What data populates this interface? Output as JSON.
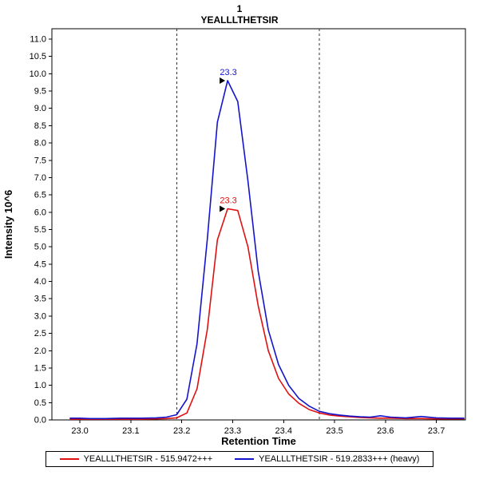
{
  "title": "1",
  "subtitle": "YEALLLTHETSIR",
  "chart_data": {
    "type": "line",
    "title": "1",
    "subtitle": "YEALLLTHETSIR",
    "xlabel": "Retention Time",
    "ylabel": "Intensity 10^6",
    "xlim": [
      22.945,
      23.757
    ],
    "ylim": [
      0,
      11.3
    ],
    "x_ticks": [
      23.0,
      23.1,
      23.2,
      23.3,
      23.4,
      23.5,
      23.6,
      23.7
    ],
    "y_tick_step": 0.5,
    "y_tick_max": 11.0,
    "grid": false,
    "legend_position": "bottom",
    "boundaries": [
      23.19,
      23.47
    ],
    "x": [
      22.98,
      23.0,
      23.02,
      23.05,
      23.08,
      23.1,
      23.12,
      23.15,
      23.17,
      23.19,
      23.21,
      23.23,
      23.25,
      23.27,
      23.29,
      23.31,
      23.33,
      23.35,
      23.37,
      23.39,
      23.41,
      23.43,
      23.45,
      23.47,
      23.49,
      23.51,
      23.53,
      23.55,
      23.57,
      23.59,
      23.61,
      23.64,
      23.67,
      23.7,
      23.73,
      23.755
    ],
    "series": [
      {
        "name": "YEALLLTHETSIR - 515.9472+++",
        "color": "#e01010",
        "values": [
          0.02,
          0.02,
          0.02,
          0.02,
          0.02,
          0.02,
          0.02,
          0.03,
          0.04,
          0.06,
          0.2,
          0.9,
          2.6,
          5.2,
          6.1,
          6.05,
          5.0,
          3.3,
          2.0,
          1.2,
          0.75,
          0.48,
          0.3,
          0.2,
          0.14,
          0.11,
          0.09,
          0.07,
          0.06,
          0.05,
          0.05,
          0.04,
          0.04,
          0.03,
          0.03,
          0.03
        ]
      },
      {
        "name": "YEALLLTHETSIR - 519.2833+++ (heavy)",
        "color": "#1414cc",
        "values": [
          0.05,
          0.05,
          0.04,
          0.04,
          0.05,
          0.05,
          0.05,
          0.06,
          0.08,
          0.15,
          0.6,
          2.2,
          5.2,
          8.6,
          9.8,
          9.2,
          6.9,
          4.3,
          2.6,
          1.6,
          1.0,
          0.62,
          0.4,
          0.25,
          0.18,
          0.14,
          0.11,
          0.09,
          0.08,
          0.12,
          0.08,
          0.06,
          0.1,
          0.06,
          0.05,
          0.05
        ]
      }
    ],
    "annotations": [
      {
        "label": "23.3",
        "x": 23.29,
        "y": 6.1,
        "color": "#e01010"
      },
      {
        "label": "23.3",
        "x": 23.29,
        "y": 9.8,
        "color": "#1414cc"
      }
    ]
  },
  "colors": {
    "axis": "#000000",
    "boundary": "#333333",
    "background": "#ffffff"
  }
}
